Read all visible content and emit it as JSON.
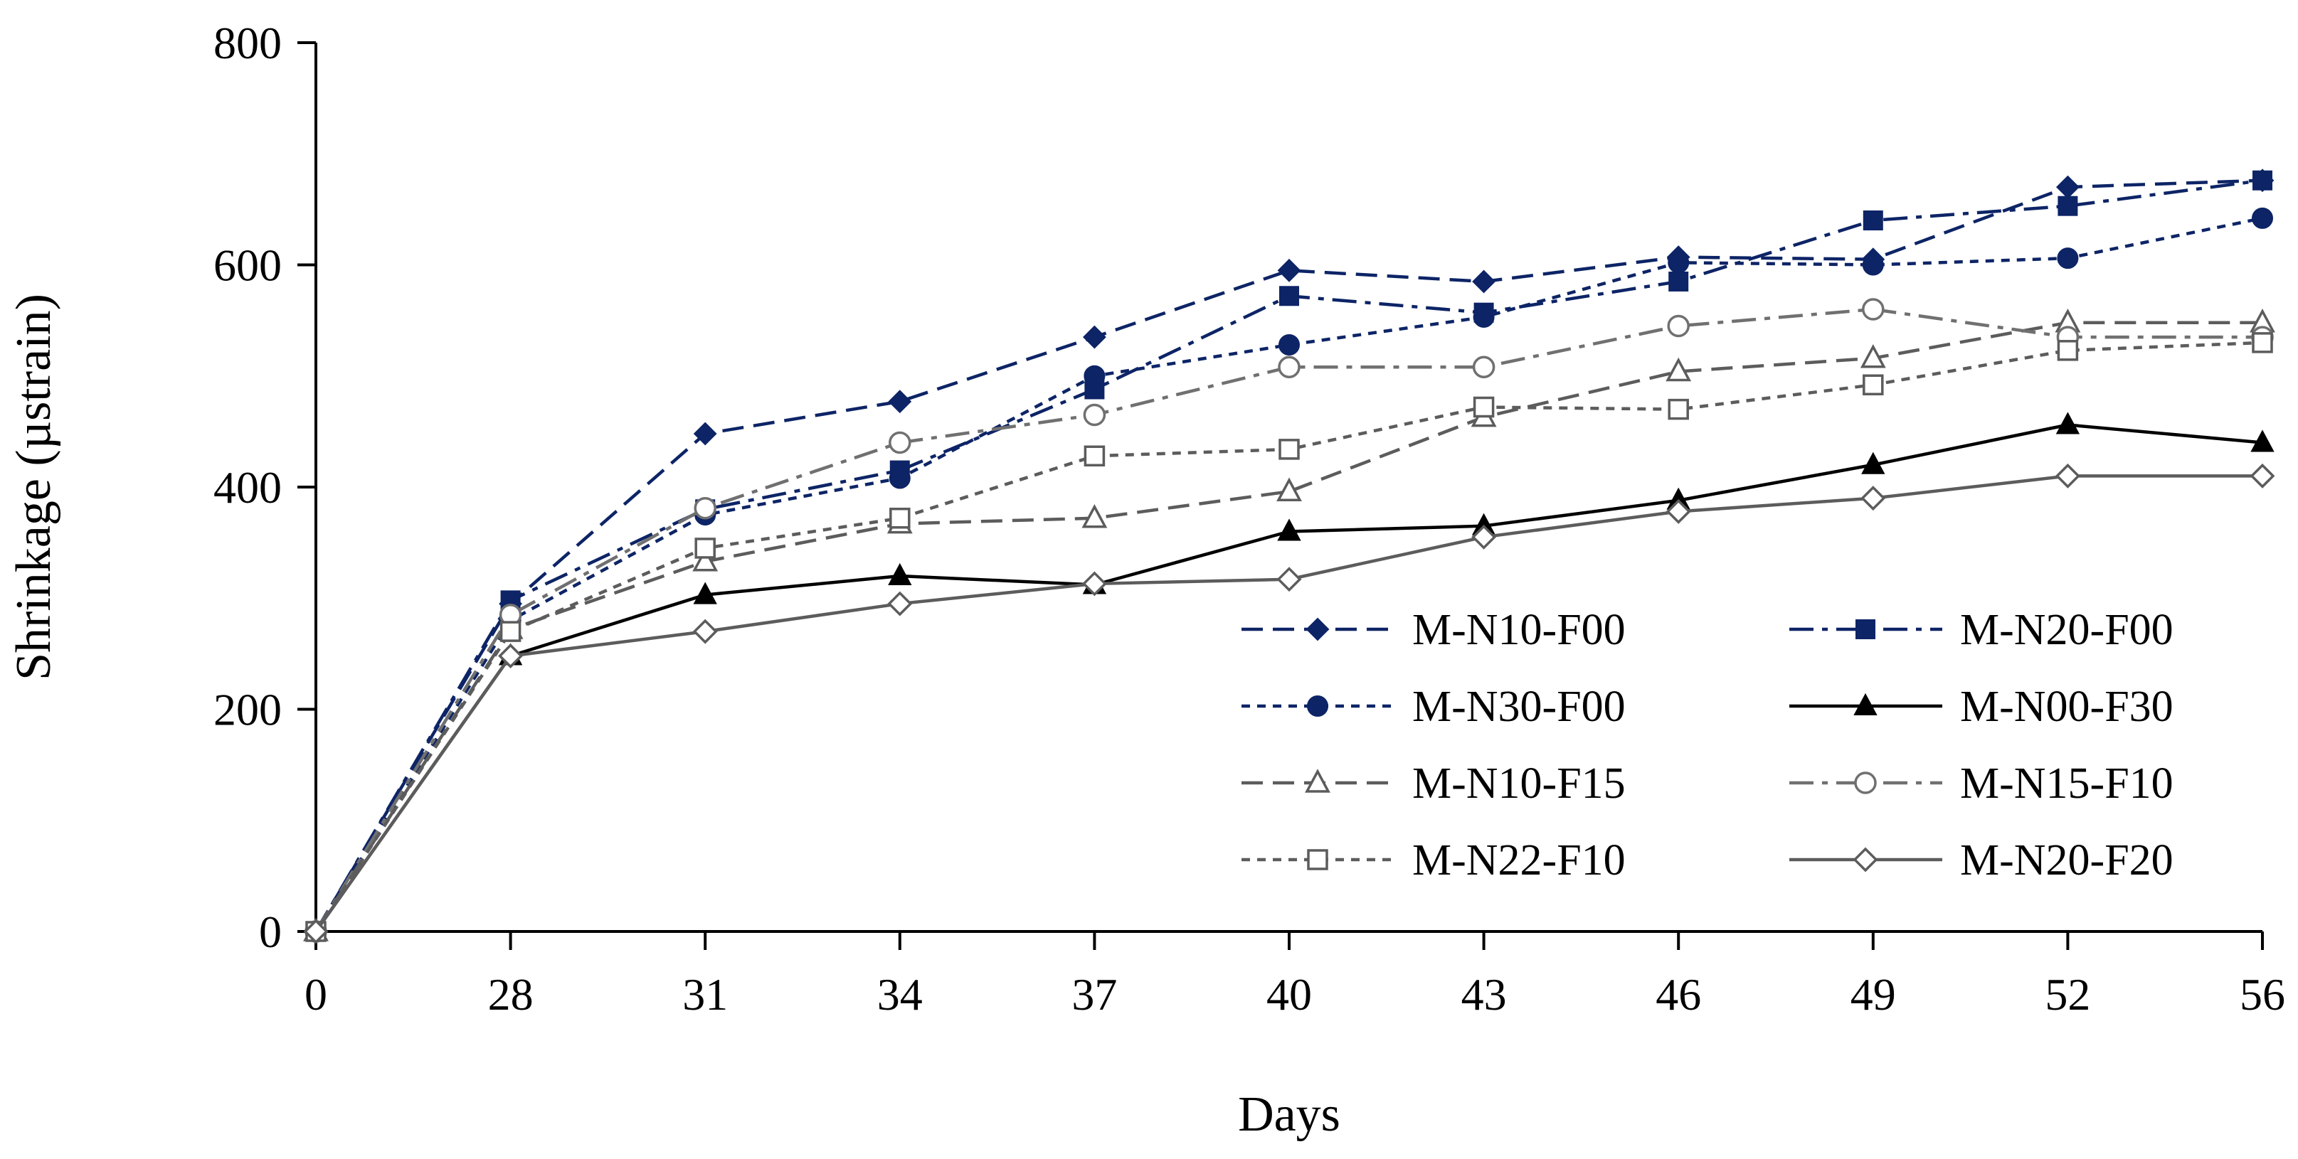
{
  "chart_data": {
    "type": "line",
    "title": "",
    "xlabel": "Days",
    "ylabel": "Shrinkage (µstrain)",
    "categories": [
      "0",
      "28",
      "31",
      "34",
      "37",
      "40",
      "43",
      "46",
      "49",
      "52",
      "56"
    ],
    "y_ticks": [
      "0",
      "200",
      "400",
      "600",
      "800"
    ],
    "ylim": [
      0,
      800
    ],
    "grid": false,
    "legend_position": "bottom-right",
    "series": [
      {
        "name": "M-N10-F00",
        "color": "#0d2466",
        "dash": "dashed",
        "marker": "diamond-filled",
        "values": [
          0,
          295,
          448,
          477,
          535,
          595,
          585,
          607,
          605,
          670,
          676
        ]
      },
      {
        "name": "M-N20-F00",
        "color": "#0d2466",
        "dash": "dashdot",
        "marker": "square-filled",
        "values": [
          0,
          298,
          380,
          415,
          488,
          572,
          557,
          585,
          640,
          653,
          676
        ]
      },
      {
        "name": "M-N30-F00",
        "color": "#0d2466",
        "dash": "dotted",
        "marker": "circle-filled",
        "values": [
          0,
          280,
          375,
          408,
          500,
          528,
          553,
          602,
          600,
          606,
          642
        ]
      },
      {
        "name": "M-N00-F30",
        "color": "#000000",
        "dash": "solid",
        "marker": "triangle-filled",
        "values": [
          0,
          248,
          303,
          320,
          312,
          360,
          365,
          388,
          420,
          456,
          440
        ]
      },
      {
        "name": "M-N10-F15",
        "color": "#5c5c5c",
        "dash": "dashed",
        "marker": "triangle-open",
        "values": [
          0,
          272,
          333,
          367,
          372,
          396,
          463,
          504,
          516,
          548,
          548
        ]
      },
      {
        "name": "M-N15-F10",
        "color": "#707070",
        "dash": "dashdot",
        "marker": "circle-open",
        "values": [
          0,
          285,
          381,
          440,
          465,
          508,
          508,
          545,
          560,
          535,
          535
        ]
      },
      {
        "name": "M-N22-F10",
        "color": "#5c5c5c",
        "dash": "dotted",
        "marker": "square-open",
        "values": [
          0,
          270,
          345,
          372,
          428,
          434,
          472,
          470,
          492,
          523,
          530
        ]
      },
      {
        "name": "M-N20-F20",
        "color": "#5c5c5c",
        "dash": "solid",
        "marker": "diamond-open",
        "values": [
          0,
          248,
          270,
          295,
          313,
          317,
          355,
          378,
          390,
          410,
          410
        ]
      }
    ]
  }
}
